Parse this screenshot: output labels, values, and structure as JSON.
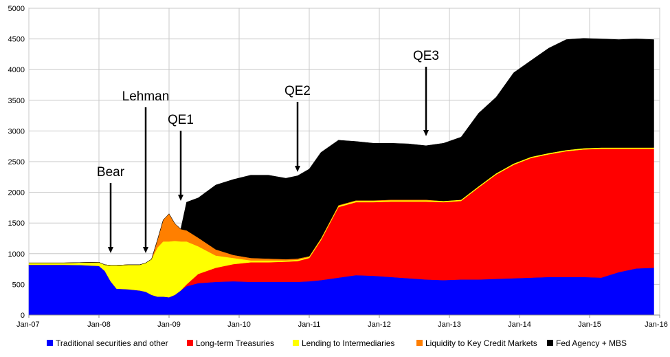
{
  "chart_data": {
    "type": "area",
    "stacked": true,
    "title": "",
    "xlabel": "",
    "ylabel": "",
    "ylim": [
      0,
      5000
    ],
    "xlim": [
      "2007-01",
      "2016-01"
    ],
    "y_ticks": [
      "0",
      "500",
      "1000",
      "1500",
      "2000",
      "2500",
      "3000",
      "3500",
      "4000",
      "4500",
      "5000"
    ],
    "x_ticks": [
      "Jan-07",
      "Jan-08",
      "Jan-09",
      "Jan-10",
      "Jan-11",
      "Jan-12",
      "Jan-13",
      "Jan-14",
      "Jan-15",
      "Jan-16"
    ],
    "grid": "vertical and horizontal gridlines",
    "legend_position": "bottom",
    "x": [
      "2007-01",
      "2007-04",
      "2007-07",
      "2007-10",
      "2008-01",
      "2008-02",
      "2008-03",
      "2008-04",
      "2008-06",
      "2008-08",
      "2008-09",
      "2008-10",
      "2008-11",
      "2008-12",
      "2009-01",
      "2009-02",
      "2009-03",
      "2009-04",
      "2009-06",
      "2009-09",
      "2009-12",
      "2010-03",
      "2010-06",
      "2010-09",
      "2010-11",
      "2011-01",
      "2011-03",
      "2011-06",
      "2011-09",
      "2011-12",
      "2012-03",
      "2012-06",
      "2012-09",
      "2012-12",
      "2013-03",
      "2013-06",
      "2013-09",
      "2013-12",
      "2014-03",
      "2014-06",
      "2014-09",
      "2014-12",
      "2015-03",
      "2015-06",
      "2015-09",
      "2015-12"
    ],
    "series": [
      {
        "name": "Traditional securities and other",
        "color": "#0000ff",
        "values": [
          820,
          820,
          820,
          815,
          800,
          720,
          550,
          430,
          420,
          400,
          380,
          330,
          300,
          300,
          290,
          330,
          400,
          470,
          520,
          540,
          550,
          540,
          540,
          540,
          540,
          550,
          570,
          610,
          650,
          640,
          620,
          600,
          580,
          570,
          580,
          580,
          590,
          600,
          610,
          620,
          620,
          620,
          610,
          700,
          760,
          770
        ]
      },
      {
        "name": "Long-term Treasuries",
        "color": "#ff0000",
        "values": [
          0,
          0,
          0,
          0,
          0,
          0,
          0,
          0,
          0,
          0,
          0,
          0,
          0,
          0,
          0,
          0,
          0,
          30,
          150,
          230,
          280,
          320,
          320,
          330,
          340,
          380,
          650,
          1150,
          1190,
          1200,
          1230,
          1250,
          1270,
          1270,
          1280,
          1500,
          1700,
          1850,
          1950,
          2000,
          2050,
          2080,
          2100,
          2010,
          1950,
          1940
        ]
      },
      {
        "name": "Lending to Intermediaries",
        "color": "#ffff00",
        "values": [
          30,
          30,
          30,
          40,
          60,
          100,
          260,
          380,
          400,
          420,
          470,
          580,
          800,
          900,
          910,
          880,
          800,
          700,
          450,
          200,
          100,
          30,
          30,
          20,
          20,
          20,
          20,
          20,
          20,
          20,
          20,
          20,
          20,
          20,
          20,
          20,
          20,
          20,
          20,
          20,
          20,
          20,
          20,
          20,
          20,
          20
        ]
      },
      {
        "name": "Liquidity to Key Credit Markets",
        "color": "#ff7f00",
        "values": [
          0,
          0,
          0,
          0,
          0,
          0,
          0,
          0,
          0,
          0,
          0,
          0,
          120,
          350,
          450,
          280,
          200,
          180,
          140,
          100,
          50,
          40,
          30,
          20,
          20,
          10,
          10,
          10,
          10,
          10,
          10,
          10,
          10,
          0,
          0,
          0,
          0,
          0,
          0,
          0,
          0,
          0,
          0,
          0,
          0,
          0
        ]
      },
      {
        "name": "Fed Agency + MBS",
        "color": "#000000",
        "values": [
          0,
          0,
          0,
          0,
          0,
          0,
          0,
          0,
          0,
          0,
          0,
          0,
          0,
          0,
          0,
          0,
          0,
          460,
          650,
          1050,
          1230,
          1350,
          1360,
          1320,
          1350,
          1420,
          1400,
          1060,
          960,
          930,
          920,
          910,
          880,
          940,
          1020,
          1190,
          1240,
          1480,
          1570,
          1710,
          1800,
          1790,
          1770,
          1760,
          1770,
          1760
        ]
      }
    ],
    "annotations": [
      {
        "label": "Bear",
        "x": "2008-03"
      },
      {
        "label": "Lehman",
        "x": "2008-09"
      },
      {
        "label": "QE1",
        "x": "2009-03"
      },
      {
        "label": "QE2",
        "x": "2010-11"
      },
      {
        "label": "QE3",
        "x": "2012-09"
      }
    ]
  }
}
